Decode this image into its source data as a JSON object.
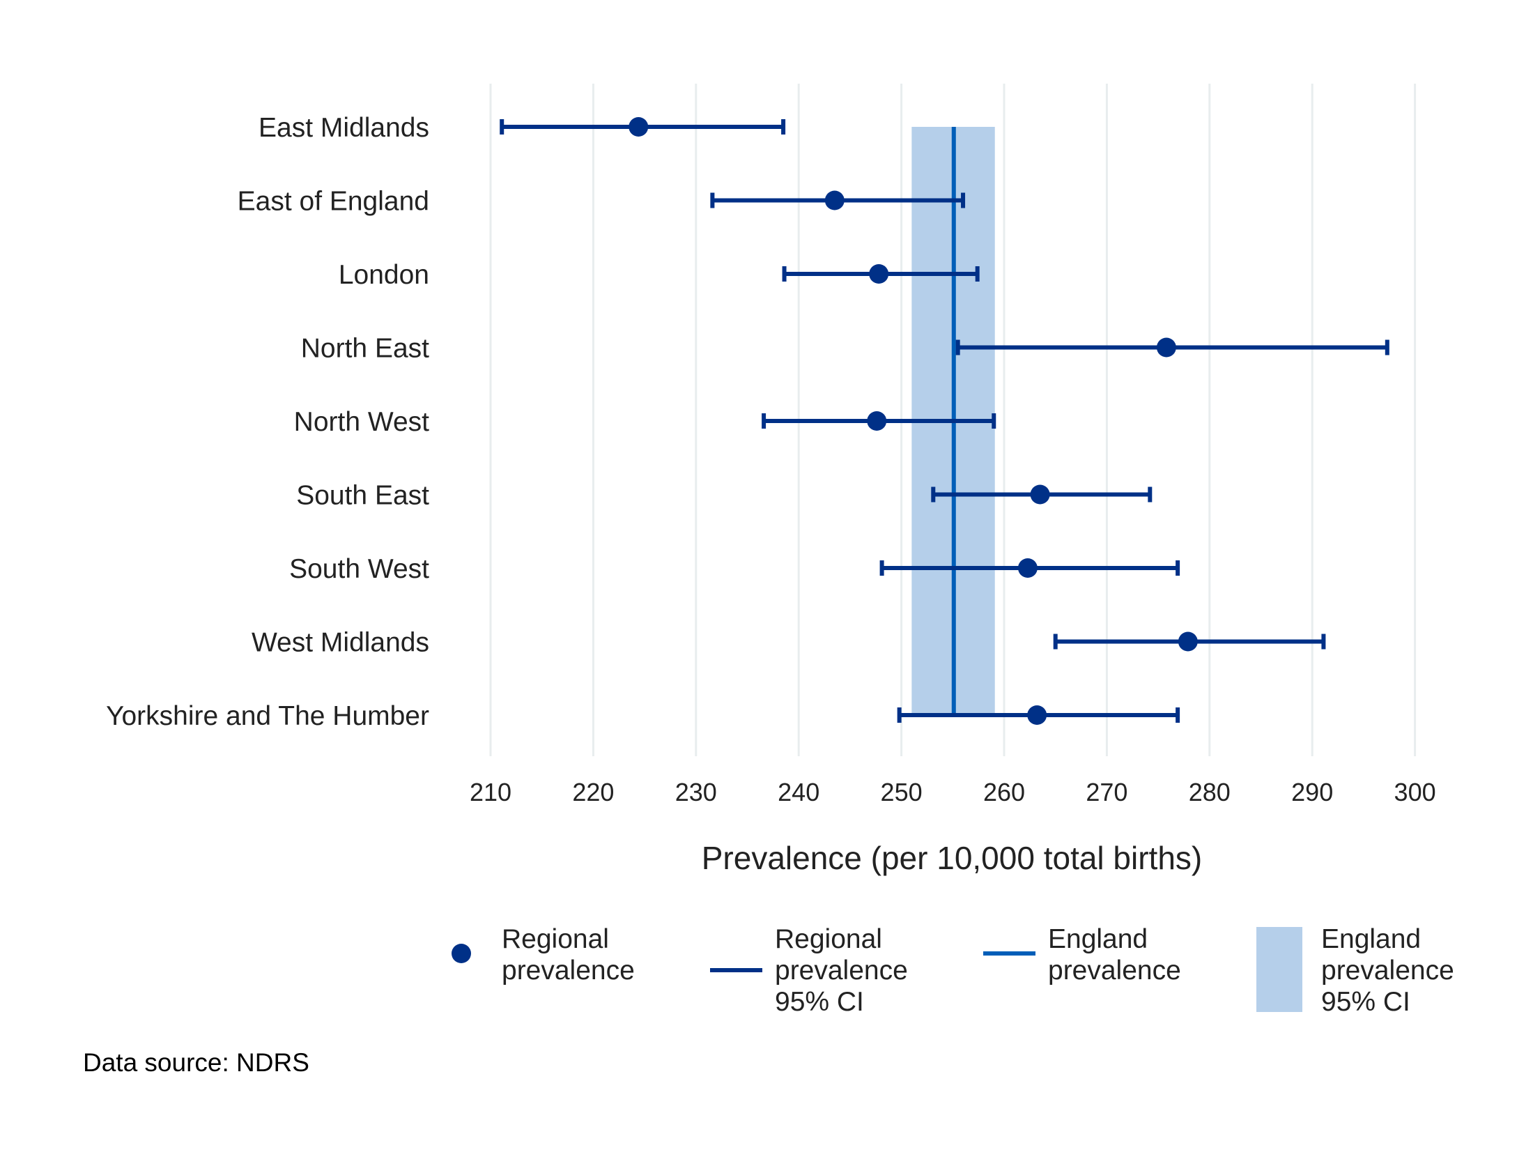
{
  "chart_data": {
    "type": "forest",
    "title": "",
    "xlabel": "Prevalence (per 10,000 total births)",
    "ylabel": "",
    "xlim": [
      207,
      302
    ],
    "xticks": [
      210,
      220,
      230,
      240,
      250,
      260,
      270,
      280,
      290,
      300
    ],
    "grid": "vertical",
    "categories": [
      "East Midlands",
      "East of England",
      "London",
      "North East",
      "North West",
      "South East",
      "South West",
      "West Midlands",
      "Yorkshire and The Humber"
    ],
    "series": [
      {
        "name": "Regional prevalence",
        "values": [
          224.4,
          243.5,
          247.8,
          275.8,
          247.6,
          263.5,
          262.3,
          277.9,
          263.2
        ]
      },
      {
        "name": "Regional prevalence 95% CI",
        "lower": [
          211.1,
          231.6,
          238.6,
          255.5,
          236.6,
          253.1,
          248.1,
          265.0,
          249.8
        ],
        "upper": [
          238.5,
          256.0,
          257.4,
          297.3,
          259.0,
          274.2,
          276.9,
          291.1,
          276.9
        ]
      }
    ],
    "reference": {
      "name": "England prevalence",
      "value": 255.1,
      "ci_name": "England prevalence 95% CI",
      "ci": [
        251.0,
        259.1
      ]
    },
    "legend": {
      "position": "bottom",
      "items": [
        {
          "key": "point",
          "lines": [
            "Regional",
            "prevalence"
          ]
        },
        {
          "key": "ci-line",
          "lines": [
            "Regional",
            "prevalence",
            "95% CI"
          ]
        },
        {
          "key": "ref-line",
          "lines": [
            "England",
            "prevalence"
          ]
        },
        {
          "key": "ref-band",
          "lines": [
            "England",
            "prevalence",
            "95% CI"
          ]
        }
      ]
    },
    "source": "Data source: NDRS"
  },
  "colors": {
    "regional": "#003087",
    "england_line": "#005EB8",
    "england_band": "#B5CFEA",
    "grid": "#E8EDEE"
  }
}
